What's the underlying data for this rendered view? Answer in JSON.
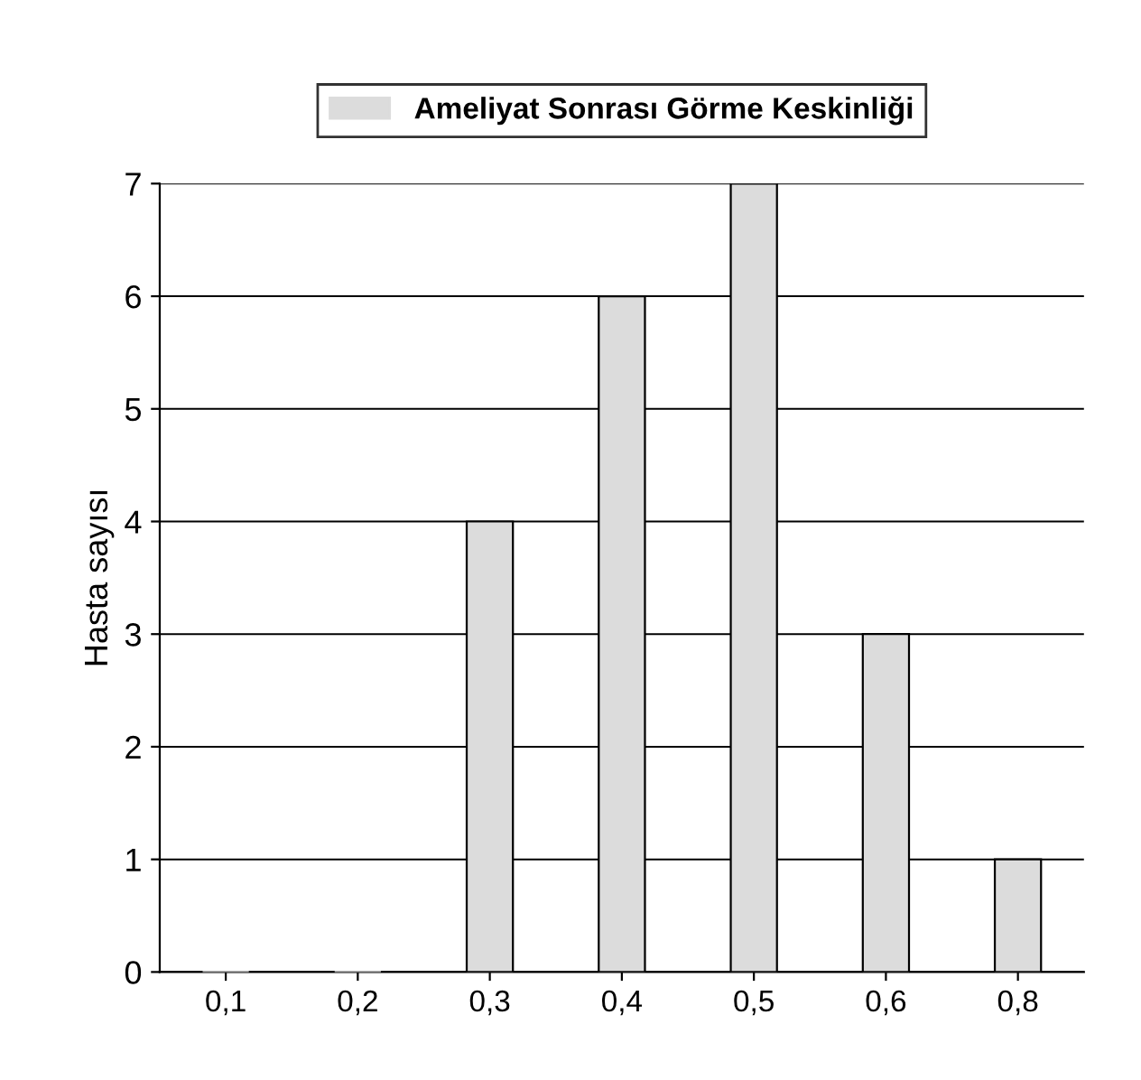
{
  "chart_data": {
    "type": "bar",
    "ylabel": "Hasta sayısı",
    "categories": [
      "0,1",
      "0,2",
      "0,3",
      "0,4",
      "0,5",
      "0,6",
      "0,8"
    ],
    "series": [
      {
        "name": "Ameliyat Sonrası Görme Keskinliği",
        "color": "#dcdcdc",
        "values": [
          0,
          0,
          4,
          6,
          7,
          3,
          1
        ]
      }
    ],
    "ylim": [
      0,
      7
    ],
    "yticks": [
      0,
      1,
      2,
      3,
      4,
      5,
      6,
      7
    ],
    "grid": "y",
    "legend": "top"
  }
}
